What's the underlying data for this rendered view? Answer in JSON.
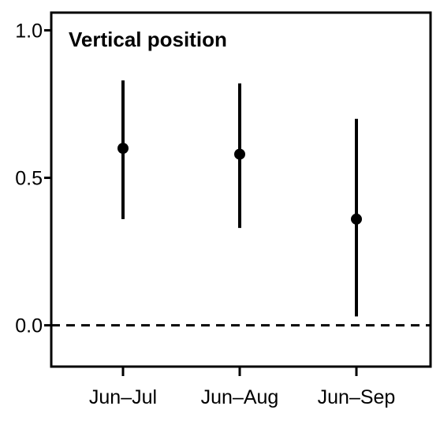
{
  "chart_data": {
    "type": "scatter",
    "title": "Vertical position",
    "xlabel": "",
    "ylabel": "",
    "categories": [
      "Jun–Jul",
      "Jun–Aug",
      "Jun–Sep"
    ],
    "series": [
      {
        "estimate": [
          0.6,
          0.58,
          0.36
        ],
        "lower": [
          0.36,
          0.33,
          0.03
        ],
        "upper": [
          0.83,
          0.82,
          0.7
        ]
      }
    ],
    "ylim": [
      -0.14,
      1.06
    ],
    "yticks": [
      {
        "value": 0.0,
        "label": "0.0"
      },
      {
        "value": 0.5,
        "label": "0.5"
      },
      {
        "value": 1.0,
        "label": "1.0"
      }
    ],
    "reference_line": {
      "y": 0.0,
      "style": "dashed"
    },
    "grid": false,
    "legend": "none",
    "colors": {
      "points": "#000000",
      "axes": "#000000"
    }
  }
}
